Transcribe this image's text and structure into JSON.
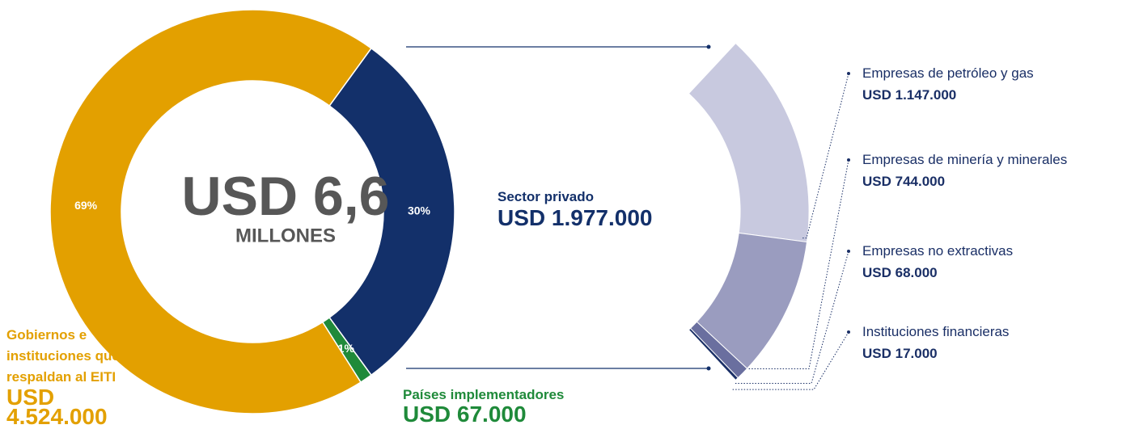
{
  "chart_data": [
    {
      "type": "pie",
      "categories": [
        "Sector privado",
        "Países implementadores",
        "Gobiernos e instituciones que respaldan al EITI"
      ],
      "amount_labels": [
        "USD 1.977.000",
        "USD 67.000",
        "USD 4.524.000"
      ],
      "values": [
        30,
        1,
        69
      ],
      "value_labels": [
        "30%",
        "1%",
        "69%"
      ],
      "colors": [
        "#13306a",
        "#1f8a3a",
        "#e3a000"
      ],
      "center_title": "USD 6,6",
      "center_subtitle": "MILLONES"
    },
    {
      "type": "bar",
      "categories": [
        "Empresas de petróleo y gas",
        "Empresas de minería y minerales",
        "Empresas no extractivas",
        "Instituciones financieras"
      ],
      "values": [
        1147000,
        744000,
        68000,
        17000
      ],
      "value_labels": [
        "USD 1.147.000",
        "USD 744.000",
        "USD 68.000",
        "USD 17.000"
      ],
      "colors": [
        "#c8c9df",
        "#9a9cbf",
        "#6a6f9f",
        "#1a2f66"
      ]
    }
  ]
}
